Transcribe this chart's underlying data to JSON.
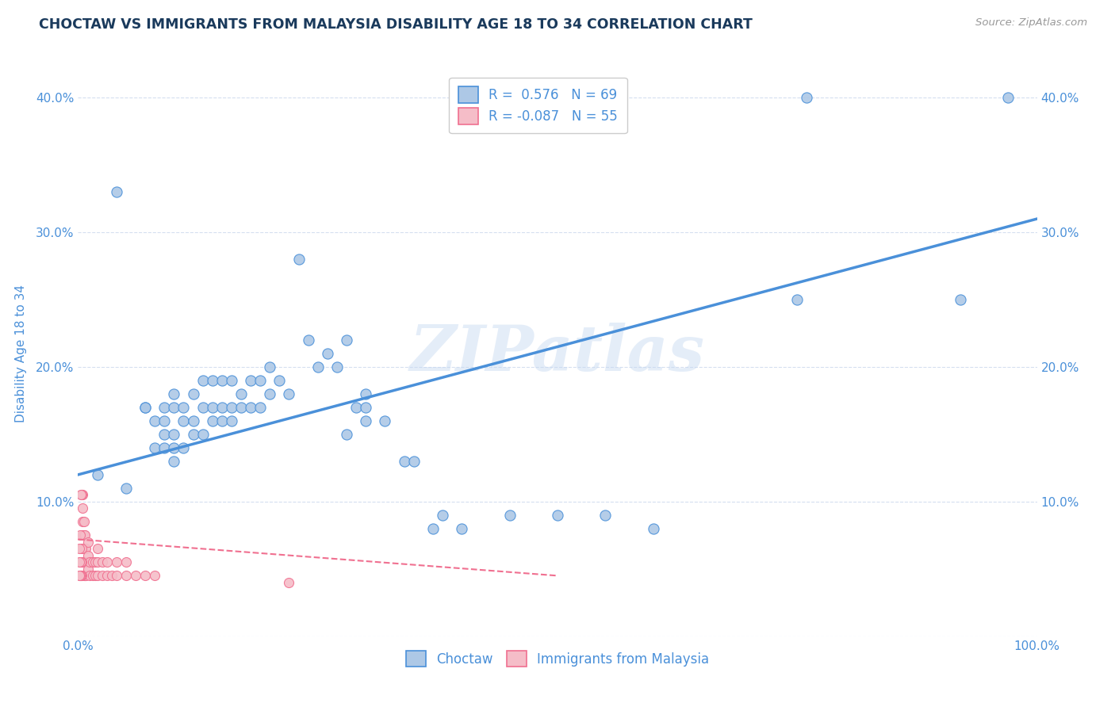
{
  "title": "CHOCTAW VS IMMIGRANTS FROM MALAYSIA DISABILITY AGE 18 TO 34 CORRELATION CHART",
  "source": "Source: ZipAtlas.com",
  "ylabel": "Disability Age 18 to 34",
  "xlim": [
    0,
    1.0
  ],
  "ylim": [
    0,
    0.42
  ],
  "xticks": [
    0.0,
    0.1,
    0.2,
    0.3,
    0.4,
    0.5,
    0.6,
    0.7,
    0.8,
    0.9,
    1.0
  ],
  "yticks": [
    0.0,
    0.1,
    0.2,
    0.3,
    0.4
  ],
  "choctaw_R": 0.576,
  "choctaw_N": 69,
  "malaysia_R": -0.087,
  "malaysia_N": 55,
  "choctaw_color": "#adc8e6",
  "malaysia_color": "#f5bdc8",
  "choctaw_line_color": "#4a90d9",
  "malaysia_line_color": "#f07090",
  "watermark": "ZIPatlas",
  "background_color": "#ffffff",
  "grid_color": "#d5dff0",
  "title_color": "#1a3a5c",
  "axis_label_color": "#4a90d9",
  "legend_text_color": "#4a90d9",
  "choctaw_x": [
    0.04,
    0.07,
    0.07,
    0.08,
    0.08,
    0.09,
    0.09,
    0.09,
    0.09,
    0.1,
    0.1,
    0.1,
    0.1,
    0.1,
    0.11,
    0.11,
    0.11,
    0.12,
    0.12,
    0.12,
    0.13,
    0.13,
    0.13,
    0.14,
    0.14,
    0.14,
    0.15,
    0.15,
    0.15,
    0.16,
    0.16,
    0.16,
    0.17,
    0.17,
    0.18,
    0.18,
    0.19,
    0.19,
    0.2,
    0.2,
    0.21,
    0.22,
    0.23,
    0.24,
    0.25,
    0.26,
    0.27,
    0.28,
    0.29,
    0.3,
    0.3,
    0.32,
    0.34,
    0.35,
    0.37,
    0.38,
    0.4,
    0.45,
    0.5,
    0.55,
    0.6,
    0.75,
    0.76,
    0.92,
    0.97,
    0.02,
    0.05,
    0.28,
    0.3
  ],
  "choctaw_y": [
    0.33,
    0.17,
    0.17,
    0.14,
    0.16,
    0.14,
    0.15,
    0.16,
    0.17,
    0.13,
    0.14,
    0.15,
    0.17,
    0.18,
    0.14,
    0.16,
    0.17,
    0.15,
    0.16,
    0.18,
    0.15,
    0.17,
    0.19,
    0.16,
    0.17,
    0.19,
    0.16,
    0.17,
    0.19,
    0.16,
    0.17,
    0.19,
    0.17,
    0.18,
    0.17,
    0.19,
    0.17,
    0.19,
    0.18,
    0.2,
    0.19,
    0.18,
    0.28,
    0.22,
    0.2,
    0.21,
    0.2,
    0.22,
    0.17,
    0.17,
    0.18,
    0.16,
    0.13,
    0.13,
    0.08,
    0.09,
    0.08,
    0.09,
    0.09,
    0.09,
    0.08,
    0.25,
    0.4,
    0.25,
    0.4,
    0.12,
    0.11,
    0.15,
    0.16
  ],
  "malaysia_x": [
    0.005,
    0.005,
    0.005,
    0.005,
    0.005,
    0.005,
    0.006,
    0.006,
    0.006,
    0.006,
    0.006,
    0.007,
    0.007,
    0.007,
    0.007,
    0.008,
    0.008,
    0.008,
    0.01,
    0.01,
    0.01,
    0.012,
    0.012,
    0.015,
    0.015,
    0.018,
    0.018,
    0.02,
    0.02,
    0.02,
    0.025,
    0.025,
    0.03,
    0.03,
    0.035,
    0.04,
    0.04,
    0.05,
    0.05,
    0.06,
    0.07,
    0.08,
    0.004,
    0.004,
    0.004,
    0.004,
    0.003,
    0.003,
    0.003,
    0.002,
    0.002,
    0.001,
    0.001,
    0.001,
    0.22
  ],
  "malaysia_y": [
    0.055,
    0.065,
    0.075,
    0.085,
    0.095,
    0.105,
    0.045,
    0.055,
    0.065,
    0.075,
    0.085,
    0.045,
    0.055,
    0.065,
    0.075,
    0.045,
    0.055,
    0.065,
    0.05,
    0.06,
    0.07,
    0.045,
    0.055,
    0.045,
    0.055,
    0.045,
    0.055,
    0.045,
    0.055,
    0.065,
    0.045,
    0.055,
    0.045,
    0.055,
    0.045,
    0.045,
    0.055,
    0.045,
    0.055,
    0.045,
    0.045,
    0.045,
    0.045,
    0.055,
    0.065,
    0.105,
    0.045,
    0.055,
    0.105,
    0.045,
    0.075,
    0.045,
    0.055,
    0.065,
    0.04
  ],
  "choctaw_trendline_x": [
    0.0,
    1.0
  ],
  "choctaw_trendline_y": [
    0.12,
    0.31
  ],
  "malaysia_trendline_x": [
    0.0,
    0.5
  ],
  "malaysia_trendline_y": [
    0.072,
    0.045
  ]
}
